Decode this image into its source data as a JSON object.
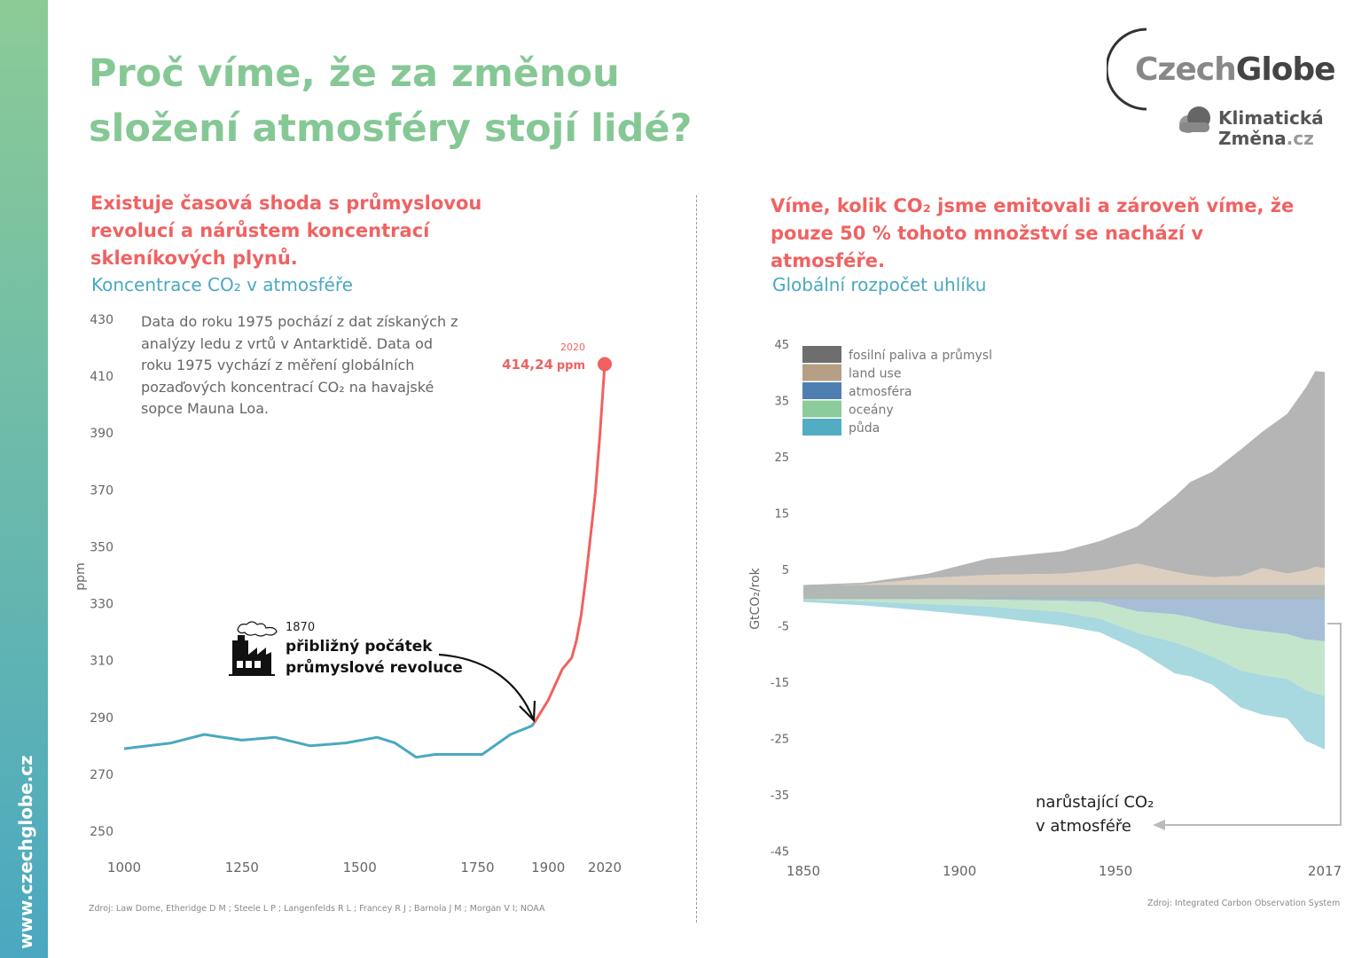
{
  "sidebar": {
    "url": "www.czechglobe.cz"
  },
  "title": "Proč víme, že za změnou složení atmosféry stojí lidé?",
  "logo": {
    "czech": "Czech",
    "globe": "Globe",
    "klim1": "Klimatická",
    "klim2": "Změna",
    "klim3": ".cz"
  },
  "left": {
    "heading": "Existuje časová shoda s průmyslovou revolucí a nárůstem koncentrací skleníkových plynů.",
    "subtitle": "Koncentrace CO₂ v atmosféře",
    "note": "Data do roku 1975 pochází z dat získaných z analýzy ledu z vrtů v Antarktidě. Data od roku 1975 vychází z měření globálních pozaďových koncentrací CO₂ na havajské sopce Mauna Loa.",
    "annot_year": "1870",
    "annot_l1": "přibližný počátek",
    "annot_l2": "průmyslové revoluce",
    "end_year": "2020",
    "end_value": "414,24",
    "end_unit": "ppm",
    "source": "Zdroj: Law Dome, Etheridge D M ; Steele L P ; Langenfelds R L ; Francey R J ; Barnola J M ; Morgan V I; NOAA"
  },
  "right": {
    "heading": "Víme, kolik CO₂ jsme emitovali a zároveň víme, že pouze 50 % tohoto množství se nachází v atmosféře.",
    "subtitle": "Globální rozpočet uhlíku",
    "annot_l1": "narůstající CO₂",
    "annot_l2": "v atmosféře",
    "source": "Zdroj: Integrated Carbon Observation System"
  },
  "chart_data": [
    {
      "type": "line",
      "ylabel": "ppm",
      "ylim": [
        250,
        430
      ],
      "yticks": [
        430,
        410,
        390,
        370,
        350,
        330,
        310,
        290,
        270,
        250
      ],
      "xticks": [
        1000,
        1250,
        1500,
        1750,
        1900,
        2020
      ],
      "xlim": [
        1000,
        2020
      ],
      "series": [
        {
          "color": "#4aa8c0",
          "x": [
            1000,
            1100,
            1170,
            1250,
            1320,
            1395,
            1470,
            1537,
            1575,
            1620,
            1660,
            1715,
            1760,
            1820,
            1865,
            1870
          ],
          "y": [
            279,
            281,
            284,
            282,
            283,
            280,
            281,
            283,
            281,
            276,
            277,
            277,
            277,
            284,
            287,
            288
          ]
        },
        {
          "color": "#f26060",
          "x": [
            1870,
            1900,
            1930,
            1950,
            1960,
            1970,
            1980,
            1990,
            2000,
            2010,
            2020
          ],
          "y": [
            288,
            296,
            307,
            311,
            317,
            326,
            339,
            354,
            369,
            390,
            414.24
          ]
        }
      ]
    },
    {
      "type": "area",
      "ylabel": "GtCO₂/rok",
      "ylim": [
        -45,
        45
      ],
      "yticks": [
        45,
        35,
        25,
        15,
        5,
        -5,
        -15,
        -25,
        -35,
        -45
      ],
      "xticks": [
        1850,
        1900,
        1950,
        2017
      ],
      "xlim": [
        1850,
        2017
      ],
      "legend": "top-left",
      "x": [
        1850,
        1869,
        1890,
        1909,
        1933,
        1945,
        1957,
        1969,
        1974,
        1981,
        1990,
        1997,
        2005,
        2011,
        2014,
        2017
      ],
      "series": [
        {
          "name": "fosilní paliva a průmysl",
          "color": "#6e6e6e",
          "fill": "#b5b5b5",
          "total_top": [
            2.2,
            2.6,
            4.2,
            6.9,
            8.2,
            10,
            12.6,
            17.9,
            20.5,
            22.3,
            26.2,
            29.4,
            32.6,
            37.3,
            40.2,
            40
          ]
        },
        {
          "name": "land use",
          "color": "#b5a085",
          "fill": "#dccfc0",
          "values": [
            2.1,
            2.3,
            3.4,
            4.0,
            4.2,
            4.8,
            6.0,
            4.5,
            4.0,
            3.6,
            3.8,
            5.2,
            4.2,
            4.8,
            5.4,
            5.2
          ]
        },
        {
          "name": "atmosféra",
          "color": "#4f7fb0",
          "fill": "#a6bfd6",
          "values": [
            0.1,
            0.2,
            0.3,
            0.4,
            0.6,
            0.8,
            2.5,
            3.0,
            3.5,
            4.5,
            5.5,
            6.0,
            6.5,
            7.5,
            7.6,
            7.8
          ]
        },
        {
          "name": "oceány",
          "color": "#8ccc9b",
          "fill": "#c2e5cb",
          "values": [
            0.3,
            0.5,
            0.9,
            1.2,
            2.0,
            3.0,
            3.8,
            5.0,
            5.5,
            6.0,
            7.5,
            7.8,
            8.0,
            9.0,
            9.4,
            9.7
          ]
        },
        {
          "name": "půda",
          "color": "#52adc3",
          "fill": "#a8d8e0",
          "values": [
            0.4,
            0.7,
            1.2,
            1.8,
            2.4,
            2.4,
            3.0,
            5.5,
            5.0,
            5.0,
            6.5,
            7.0,
            7.0,
            9.0,
            9.2,
            9.5
          ]
        }
      ]
    }
  ]
}
